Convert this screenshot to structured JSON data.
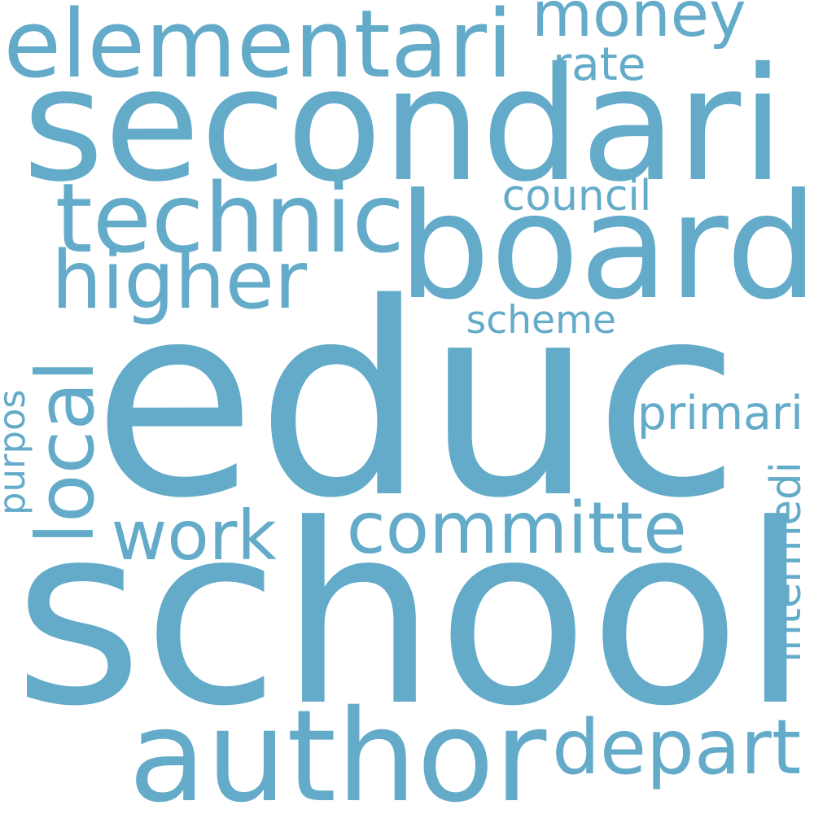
{
  "word_color": "#63abc9",
  "background_color": "#ffffff",
  "words": [
    {
      "text": "educ",
      "orientation": "horizontal"
    },
    {
      "text": "school",
      "orientation": "horizontal"
    },
    {
      "text": "secondari",
      "orientation": "horizontal"
    },
    {
      "text": "board",
      "orientation": "horizontal"
    },
    {
      "text": "author",
      "orientation": "horizontal"
    },
    {
      "text": "elementari",
      "orientation": "horizontal"
    },
    {
      "text": "technic",
      "orientation": "horizontal"
    },
    {
      "text": "higher",
      "orientation": "horizontal"
    },
    {
      "text": "committe",
      "orientation": "horizontal"
    },
    {
      "text": "depart",
      "orientation": "horizontal"
    },
    {
      "text": "money",
      "orientation": "horizontal"
    },
    {
      "text": "work",
      "orientation": "horizontal"
    },
    {
      "text": "local",
      "orientation": "vertical"
    },
    {
      "text": "primari",
      "orientation": "horizontal"
    },
    {
      "text": "scheme",
      "orientation": "horizontal"
    },
    {
      "text": "council",
      "orientation": "horizontal"
    },
    {
      "text": "rate",
      "orientation": "horizontal"
    },
    {
      "text": "intermedi",
      "orientation": "vertical"
    },
    {
      "text": "purpos",
      "orientation": "vertical"
    }
  ]
}
